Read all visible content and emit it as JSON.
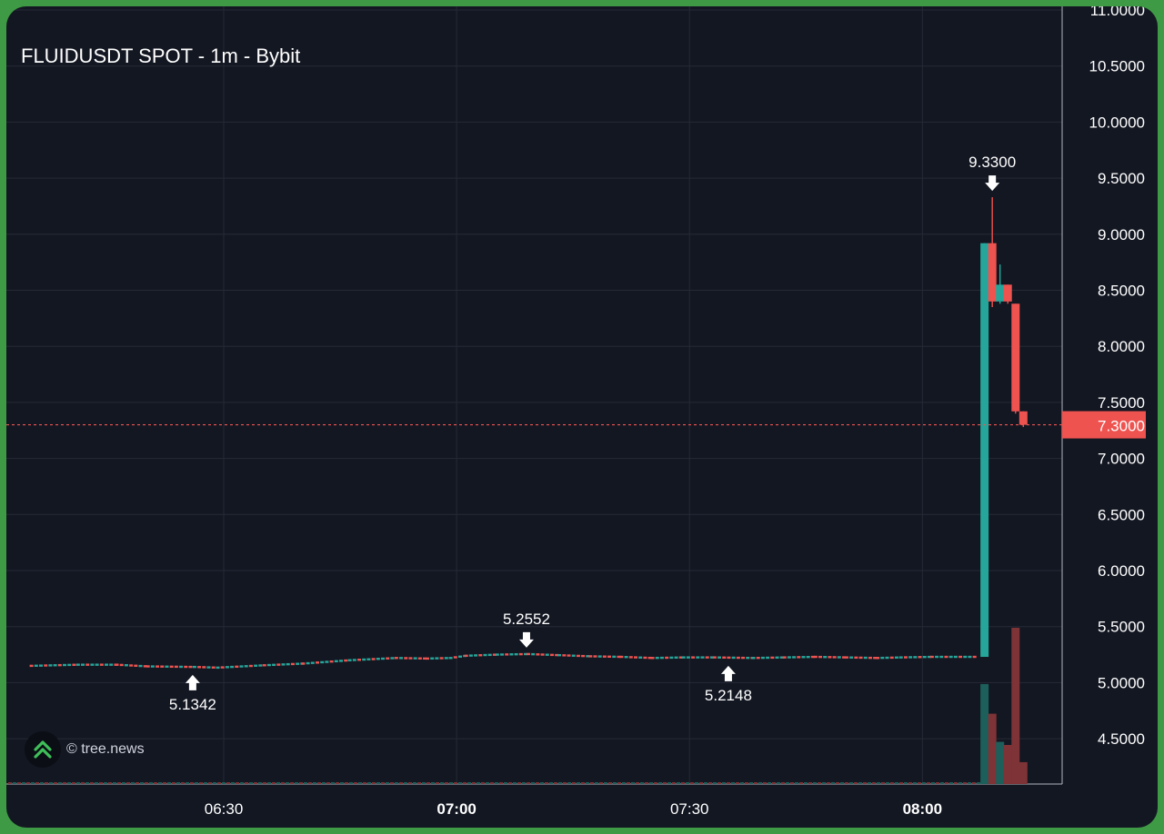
{
  "title": "FLUIDUSDT SPOT - 1m - Bybit",
  "watermark": "© tree.news",
  "colors": {
    "up": "#26a69a",
    "down": "#ef5350",
    "vol_up": "#1d5f5a",
    "vol_down": "#7e3336",
    "grid": "#242a36",
    "axis_text": "#ffffff",
    "price_line": "#ef5350",
    "frame": "#3f9a45",
    "background": "#131722"
  },
  "chart_data": {
    "type": "candlestick",
    "symbol": "FLUIDUSDT SPOT",
    "interval": "1m",
    "exchange": "Bybit",
    "y_axis": {
      "range": [
        4.12,
        11.0
      ],
      "ticks": [
        "11.0000",
        "10.5000",
        "10.0000",
        "9.5000",
        "9.0000",
        "8.5000",
        "8.0000",
        "7.5000",
        "7.0000",
        "6.5000",
        "6.0000",
        "5.5000",
        "5.0000",
        "4.5000"
      ]
    },
    "x_axis": {
      "ticks": [
        {
          "label": "06:30",
          "bold": false
        },
        {
          "label": "07:00",
          "bold": true
        },
        {
          "label": "07:30",
          "bold": false
        },
        {
          "label": "08:00",
          "bold": true
        }
      ]
    },
    "last_price": {
      "value": 7.3,
      "label": "7.3000"
    },
    "annotations": [
      {
        "label": "5.1342",
        "value": 5.1342,
        "kind": "low"
      },
      {
        "label": "5.2552",
        "value": 5.2552,
        "kind": "high"
      },
      {
        "label": "5.2148",
        "value": 5.2148,
        "kind": "low"
      },
      {
        "label": "9.3300",
        "value": 9.33,
        "kind": "high"
      }
    ],
    "close_path": [
      [
        "06:05",
        5.15
      ],
      [
        "06:11",
        5.16
      ],
      [
        "06:16",
        5.16
      ],
      [
        "06:20",
        5.145
      ],
      [
        "06:26",
        5.14
      ],
      [
        "06:29",
        5.134
      ],
      [
        "06:35",
        5.155
      ],
      [
        "06:40",
        5.17
      ],
      [
        "06:46",
        5.2
      ],
      [
        "06:52",
        5.22
      ],
      [
        "06:56",
        5.215
      ],
      [
        "06:59",
        5.22
      ],
      [
        "07:01",
        5.24
      ],
      [
        "07:05",
        5.25
      ],
      [
        "07:09",
        5.255
      ],
      [
        "07:13",
        5.245
      ],
      [
        "07:17",
        5.235
      ],
      [
        "07:21",
        5.23
      ],
      [
        "07:25",
        5.22
      ],
      [
        "07:29",
        5.225
      ],
      [
        "07:33",
        5.225
      ],
      [
        "07:38",
        5.22
      ],
      [
        "07:42",
        5.225
      ],
      [
        "07:46",
        5.23
      ],
      [
        "07:50",
        5.225
      ],
      [
        "07:54",
        5.22
      ],
      [
        "07:57",
        5.225
      ],
      [
        "08:01",
        5.23
      ],
      [
        "08:07",
        5.23
      ]
    ],
    "candles": [
      {
        "time": "08:08",
        "open": 5.23,
        "high": 8.92,
        "low": 5.23,
        "close": 8.92
      },
      {
        "time": "08:09",
        "open": 8.92,
        "high": 9.33,
        "low": 8.35,
        "close": 8.4
      },
      {
        "time": "08:10",
        "open": 8.4,
        "high": 8.73,
        "low": 8.38,
        "close": 8.55
      },
      {
        "time": "08:11",
        "open": 8.55,
        "high": 8.55,
        "low": 8.38,
        "close": 8.4
      },
      {
        "time": "08:12",
        "open": 8.38,
        "high": 8.38,
        "low": 7.4,
        "close": 7.42
      },
      {
        "time": "08:13",
        "open": 7.42,
        "high": 7.42,
        "low": 7.28,
        "close": 7.3
      }
    ],
    "volume": [
      {
        "time": "08:08",
        "value": 0.64,
        "direction": "up"
      },
      {
        "time": "08:09",
        "value": 0.45,
        "direction": "down"
      },
      {
        "time": "08:10",
        "value": 0.27,
        "direction": "up"
      },
      {
        "time": "08:11",
        "value": 0.25,
        "direction": "down"
      },
      {
        "time": "08:12",
        "value": 1.0,
        "direction": "down"
      },
      {
        "time": "08:13",
        "value": 0.14,
        "direction": "down"
      }
    ]
  }
}
